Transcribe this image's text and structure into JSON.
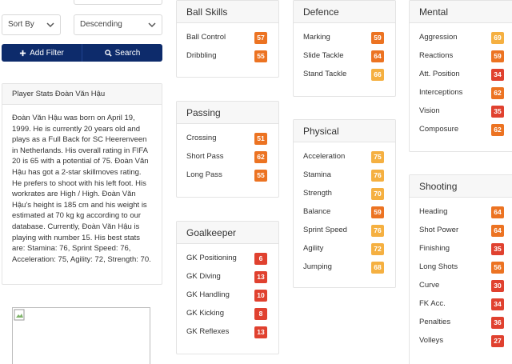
{
  "filters": {
    "sort_by_label": "Sort By",
    "order_label": "Descending",
    "add_filter_label": "Add Filter",
    "search_label": "Search"
  },
  "bio": {
    "title": "Player Stats Đoàn Văn Hậu",
    "text": "Đoàn Văn Hậu was born on April 19, 1999. He is currently 20 years old and plays as a Full Back for SC Heerenveen in Netherlands. His overall rating in FIFA 20 is 65 with a potential of 75. Đoàn Văn Hậu has got a 2-star skillmoves rating. He prefers to shoot with his left foot. His workrates are High / High. Đoàn Văn Hậu's height is 185 cm and his weight is estimated at 70 kg kg according to our database. Currently, Đoàn Văn Hậu is playing with number 15. His best stats are: Stamina: 76, Sprint Speed: 76, Acceleration: 75, Agility: 72, Strength: 70."
  },
  "colors": {
    "red": "#e0412f",
    "orange": "#ec7322",
    "yellow": "#f5b041",
    "primary": "#0d2b6b"
  },
  "ball_skills": {
    "title": "Ball Skills",
    "stats": [
      {
        "label": "Ball Control",
        "value": "57"
      },
      {
        "label": "Dribbling",
        "value": "55"
      }
    ]
  },
  "passing": {
    "title": "Passing",
    "stats": [
      {
        "label": "Crossing",
        "value": "51"
      },
      {
        "label": "Short Pass",
        "value": "62"
      },
      {
        "label": "Long Pass",
        "value": "55"
      }
    ]
  },
  "goalkeeper": {
    "title": "Goalkeeper",
    "stats": [
      {
        "label": "GK Positioning",
        "value": "6"
      },
      {
        "label": "GK Diving",
        "value": "13"
      },
      {
        "label": "GK Handling",
        "value": "10"
      },
      {
        "label": "GK Kicking",
        "value": "8"
      },
      {
        "label": "GK Reflexes",
        "value": "13"
      }
    ]
  },
  "defence": {
    "title": "Defence",
    "stats": [
      {
        "label": "Marking",
        "value": "59"
      },
      {
        "label": "Slide Tackle",
        "value": "64"
      },
      {
        "label": "Stand Tackle",
        "value": "66"
      }
    ]
  },
  "physical": {
    "title": "Physical",
    "stats": [
      {
        "label": "Acceleration",
        "value": "75"
      },
      {
        "label": "Stamina",
        "value": "76"
      },
      {
        "label": "Strength",
        "value": "70"
      },
      {
        "label": "Balance",
        "value": "59"
      },
      {
        "label": "Sprint Speed",
        "value": "76"
      },
      {
        "label": "Agility",
        "value": "72"
      },
      {
        "label": "Jumping",
        "value": "68"
      }
    ]
  },
  "mental": {
    "title": "Mental",
    "stats": [
      {
        "label": "Aggression",
        "value": "69"
      },
      {
        "label": "Reactions",
        "value": "59"
      },
      {
        "label": "Att. Position",
        "value": "34"
      },
      {
        "label": "Interceptions",
        "value": "62"
      },
      {
        "label": "Vision",
        "value": "35"
      },
      {
        "label": "Composure",
        "value": "62"
      }
    ]
  },
  "shooting": {
    "title": "Shooting",
    "stats": [
      {
        "label": "Heading",
        "value": "64"
      },
      {
        "label": "Shot Power",
        "value": "64"
      },
      {
        "label": "Finishing",
        "value": "35"
      },
      {
        "label": "Long Shots",
        "value": "56"
      },
      {
        "label": "Curve",
        "value": "30"
      },
      {
        "label": "FK Acc.",
        "value": "34"
      },
      {
        "label": "Penalties",
        "value": "36"
      },
      {
        "label": "Volleys",
        "value": "27"
      }
    ]
  }
}
